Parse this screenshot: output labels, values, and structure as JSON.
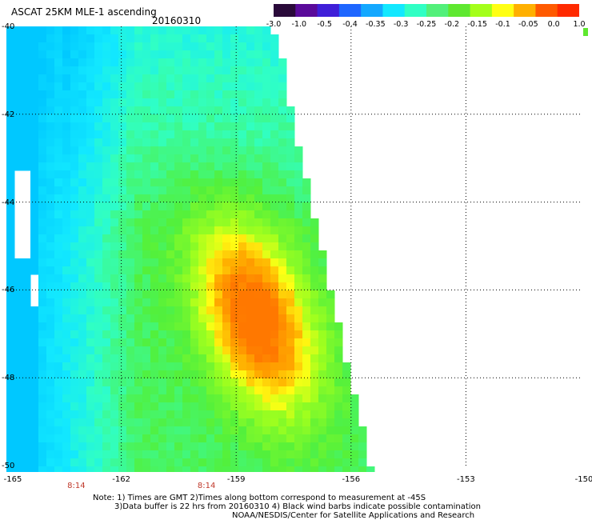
{
  "header": {
    "title": "ASCAT 25KM MLE-1 ascending",
    "date": "20160310"
  },
  "colorbar": {
    "labels": [
      "-3.0",
      "-1.0",
      "-0.5",
      "-0.4",
      "-0.35",
      "-0.3",
      "-0.25",
      "-0.2",
      "-0.15",
      "-0.1",
      "-0.05",
      "0.0",
      "1.0"
    ],
    "colors": [
      "#2a0a3a",
      "#5a0a9a",
      "#3f1fd8",
      "#1e66ff",
      "#13a8ff",
      "#12e8ff",
      "#30ffc4",
      "#52f07a",
      "#5fe830",
      "#a4ff1a",
      "#ffff14",
      "#ffb000",
      "#ff5a00",
      "#ff2a00"
    ]
  },
  "axes": {
    "lat_labels": [
      "-40",
      "-42",
      "-44",
      "-46",
      "-48",
      "-50"
    ],
    "lon_labels": [
      "-165",
      "-162",
      "-159",
      "-156",
      "-153",
      "-150"
    ],
    "lat_range": [
      -50,
      -40
    ],
    "lon_range": [
      -165,
      -150
    ]
  },
  "time_labels": [
    {
      "text": "8:14",
      "lon": -163.2
    },
    {
      "text": "8:14",
      "lon": -159.8
    }
  ],
  "notes": [
    "Note: 1) Times are GMT 2)Times along bottom correspond to measurement at -45S",
    "3)Data buffer is 22 hrs from 20160310 4) Black wind barbs indicate possible contamination",
    "NOAA/NESDIS/Center for Satellite Applications and Research"
  ]
}
